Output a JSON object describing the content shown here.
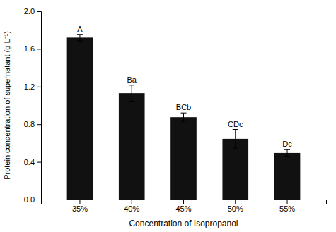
{
  "chart_data": {
    "type": "bar",
    "categories": [
      "35%",
      "40%",
      "45%",
      "50%",
      "55%"
    ],
    "values": [
      1.72,
      1.13,
      0.875,
      0.645,
      0.495
    ],
    "errors": [
      0.035,
      0.085,
      0.045,
      0.1,
      0.035
    ],
    "annotations": [
      "A",
      "Ba",
      "BCb",
      "CDc",
      "Dc"
    ],
    "color": "#111111",
    "xlabel": "Concentration of Isopropanol",
    "ylabel": "Protein concentration of supernatant (g L⁻¹)",
    "ylim": [
      0.0,
      2.0
    ],
    "yticks": [
      {
        "value": 0.0,
        "label": "0.0"
      },
      0.4,
      0.8,
      1.2,
      1.6,
      {
        "value": 2.0,
        "label": "2.0"
      }
    ],
    "grid": false
  }
}
